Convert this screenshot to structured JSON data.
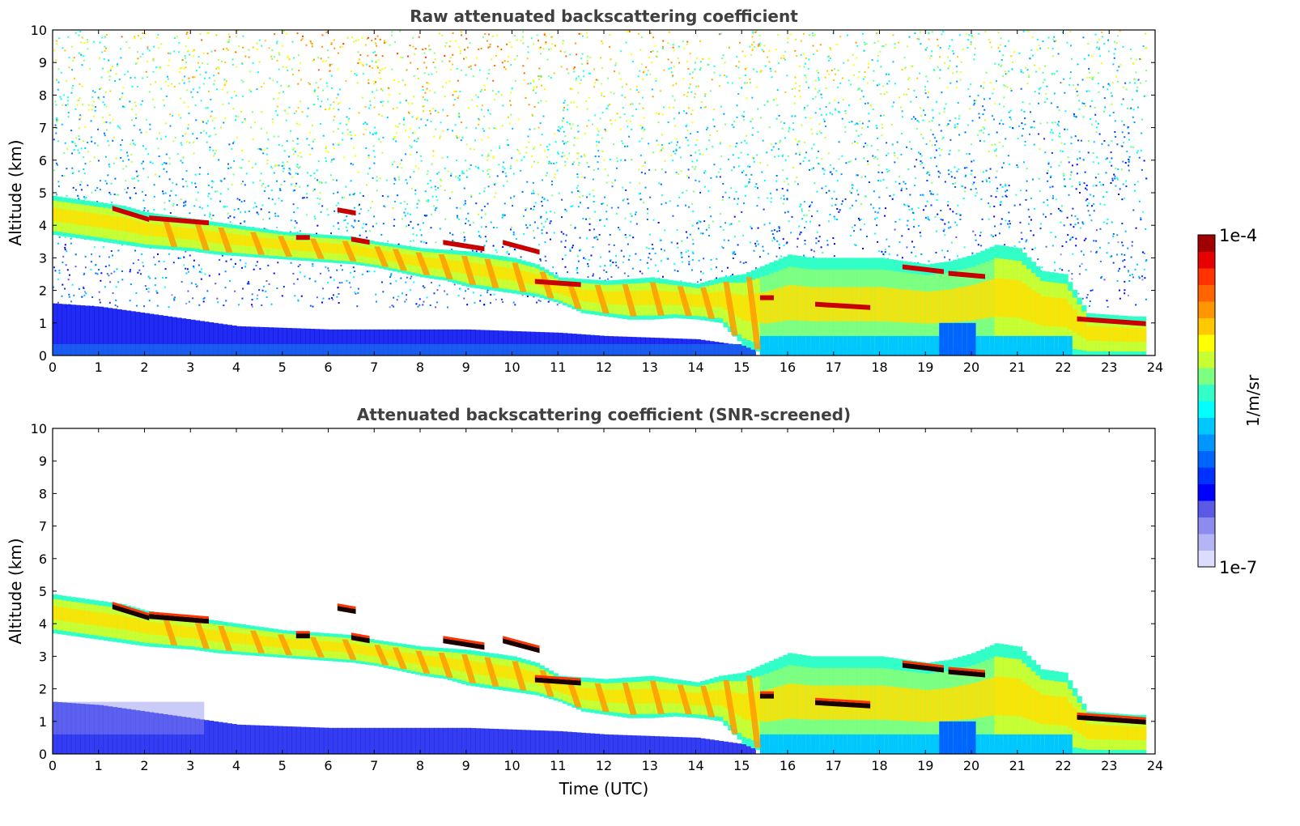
{
  "chart_data": [
    {
      "type": "heatmap",
      "title": "Raw attenuated backscattering coefficient",
      "xlabel": "",
      "ylabel": "Altitude (km)",
      "xlim": [
        0,
        24
      ],
      "ylim": [
        0,
        10
      ],
      "xticks": [
        "0",
        "1",
        "2",
        "3",
        "4",
        "5",
        "6",
        "7",
        "8",
        "9",
        "10",
        "11",
        "12",
        "13",
        "14",
        "15",
        "16",
        "17",
        "18",
        "19",
        "20",
        "21",
        "22",
        "23",
        "24"
      ],
      "yticks": [
        "0",
        "1",
        "2",
        "3",
        "4",
        "5",
        "6",
        "7",
        "8",
        "9",
        "10"
      ],
      "data_end_time": 23.8,
      "noise": true,
      "layer_top_km": [
        [
          0,
          4.9
        ],
        [
          0.5,
          4.8
        ],
        [
          1,
          4.7
        ],
        [
          1.5,
          4.6
        ],
        [
          2,
          4.4
        ],
        [
          2.5,
          4.3
        ],
        [
          3,
          4.2
        ],
        [
          3.5,
          4.1
        ],
        [
          4,
          4.0
        ],
        [
          4.5,
          3.9
        ],
        [
          5,
          3.8
        ],
        [
          5.5,
          3.75
        ],
        [
          6,
          3.7
        ],
        [
          6.5,
          3.65
        ],
        [
          7,
          3.5
        ],
        [
          7.5,
          3.4
        ],
        [
          8,
          3.3
        ],
        [
          8.5,
          3.25
        ],
        [
          9,
          3.2
        ],
        [
          9.5,
          3.1
        ],
        [
          10,
          3.0
        ],
        [
          10.5,
          2.8
        ],
        [
          11,
          2.4
        ],
        [
          11.5,
          2.35
        ],
        [
          12,
          2.3
        ],
        [
          12.5,
          2.35
        ],
        [
          13,
          2.4
        ],
        [
          13.5,
          2.3
        ],
        [
          14,
          2.2
        ],
        [
          14.5,
          2.4
        ],
        [
          15,
          2.5
        ],
        [
          15.5,
          2.8
        ],
        [
          16,
          3.1
        ],
        [
          16.5,
          3.0
        ],
        [
          17,
          3.0
        ],
        [
          17.5,
          3.0
        ],
        [
          18,
          3.0
        ],
        [
          18.5,
          2.9
        ],
        [
          19,
          2.8
        ],
        [
          19.5,
          2.9
        ],
        [
          20,
          3.1
        ],
        [
          20.5,
          3.4
        ],
        [
          21,
          3.3
        ],
        [
          21.5,
          2.6
        ],
        [
          22,
          2.5
        ],
        [
          22.5,
          1.3
        ],
        [
          23,
          1.25
        ],
        [
          23.5,
          1.2
        ],
        [
          23.8,
          1.2
        ]
      ],
      "layer_base_km": [
        [
          0,
          3.7
        ],
        [
          0.5,
          3.6
        ],
        [
          1,
          3.5
        ],
        [
          1.5,
          3.4
        ],
        [
          2,
          3.3
        ],
        [
          2.5,
          3.25
        ],
        [
          3,
          3.2
        ],
        [
          3.5,
          3.1
        ],
        [
          4,
          3.05
        ],
        [
          4.5,
          3.0
        ],
        [
          5,
          2.95
        ],
        [
          5.5,
          2.9
        ],
        [
          6,
          2.85
        ],
        [
          6.5,
          2.8
        ],
        [
          7,
          2.7
        ],
        [
          7.5,
          2.55
        ],
        [
          8,
          2.4
        ],
        [
          8.5,
          2.3
        ],
        [
          9,
          2.1
        ],
        [
          9.5,
          2.0
        ],
        [
          10,
          1.9
        ],
        [
          10.5,
          1.8
        ],
        [
          11,
          1.6
        ],
        [
          11.5,
          1.3
        ],
        [
          12,
          1.2
        ],
        [
          12.5,
          1.1
        ],
        [
          13,
          1.1
        ],
        [
          13.5,
          1.15
        ],
        [
          14,
          1.1
        ],
        [
          14.5,
          1.0
        ],
        [
          15,
          0.3
        ],
        [
          15.5,
          0
        ],
        [
          24,
          0
        ]
      ],
      "boundary_layer_top_km": [
        [
          0,
          1.6
        ],
        [
          1,
          1.5
        ],
        [
          2,
          1.3
        ],
        [
          3,
          1.1
        ],
        [
          4,
          0.9
        ],
        [
          5,
          0.85
        ],
        [
          6,
          0.8
        ],
        [
          7,
          0.8
        ],
        [
          8,
          0.8
        ],
        [
          9,
          0.8
        ],
        [
          10,
          0.75
        ],
        [
          11,
          0.7
        ],
        [
          12,
          0.6
        ],
        [
          13,
          0.55
        ],
        [
          14,
          0.5
        ],
        [
          15,
          0.3
        ]
      ],
      "strong_layers": [
        {
          "t0": 1.3,
          "t1": 2.1,
          "h0": 4.55,
          "h1": 4.2
        },
        {
          "t0": 2.1,
          "t1": 3.4,
          "h0": 4.25,
          "h1": 4.1
        },
        {
          "t0": 5.3,
          "t1": 5.6,
          "h0": 3.65,
          "h1": 3.65
        },
        {
          "t0": 6.2,
          "t1": 6.6,
          "h0": 4.5,
          "h1": 4.4
        },
        {
          "t0": 6.5,
          "t1": 6.9,
          "h0": 3.6,
          "h1": 3.5
        },
        {
          "t0": 8.5,
          "t1": 9.4,
          "h0": 3.5,
          "h1": 3.3
        },
        {
          "t0": 9.8,
          "t1": 10.6,
          "h0": 3.5,
          "h1": 3.2
        },
        {
          "t0": 10.5,
          "t1": 11.5,
          "h0": 2.3,
          "h1": 2.2
        },
        {
          "t0": 15.4,
          "t1": 15.7,
          "h0": 1.8,
          "h1": 1.8
        },
        {
          "t0": 16.6,
          "t1": 17.8,
          "h0": 1.6,
          "h1": 1.5
        },
        {
          "t0": 18.5,
          "t1": 19.4,
          "h0": 2.75,
          "h1": 2.6
        },
        {
          "t0": 19.5,
          "t1": 20.3,
          "h0": 2.55,
          "h1": 2.45
        },
        {
          "t0": 22.3,
          "t1": 23.8,
          "h0": 1.15,
          "h1": 1.0
        }
      ],
      "fall_streaks_t": [
        2.4,
        3.1,
        3.6,
        4.3,
        4.9,
        5.6,
        6.3,
        7.0,
        7.4,
        7.9,
        8.4,
        8.9,
        9.4,
        10.0,
        10.6,
        11.2,
        11.8,
        12.4,
        13.0,
        13.6,
        14.1,
        14.6,
        15.1
      ]
    },
    {
      "type": "heatmap",
      "title": "Attenuated backscattering coefficient (SNR-screened)",
      "xlabel": "Time (UTC)",
      "ylabel": "Altitude (km)",
      "xlim": [
        0,
        24
      ],
      "ylim": [
        0,
        10
      ],
      "xticks": [
        "0",
        "1",
        "2",
        "3",
        "4",
        "5",
        "6",
        "7",
        "8",
        "9",
        "10",
        "11",
        "12",
        "13",
        "14",
        "15",
        "16",
        "17",
        "18",
        "19",
        "20",
        "21",
        "22",
        "23",
        "24"
      ],
      "yticks": [
        "0",
        "1",
        "2",
        "3",
        "4",
        "5",
        "6",
        "7",
        "8",
        "9",
        "10"
      ],
      "data_end_time": 23.8,
      "noise": false
    }
  ],
  "colorbar": {
    "label": "1/m/sr",
    "max_label": "1e-4",
    "min_label": "1e-7",
    "colors": [
      "#dcdcff",
      "#b4b4f6",
      "#8c8cee",
      "#5a5ae6",
      "#0000ff",
      "#0032ff",
      "#0064ff",
      "#0096ff",
      "#00c8ff",
      "#00ffff",
      "#32ffc8",
      "#7dff82",
      "#c8ff32",
      "#ffff00",
      "#ffc800",
      "#ff9600",
      "#ff6400",
      "#ff3200",
      "#e60000",
      "#a00000"
    ]
  }
}
